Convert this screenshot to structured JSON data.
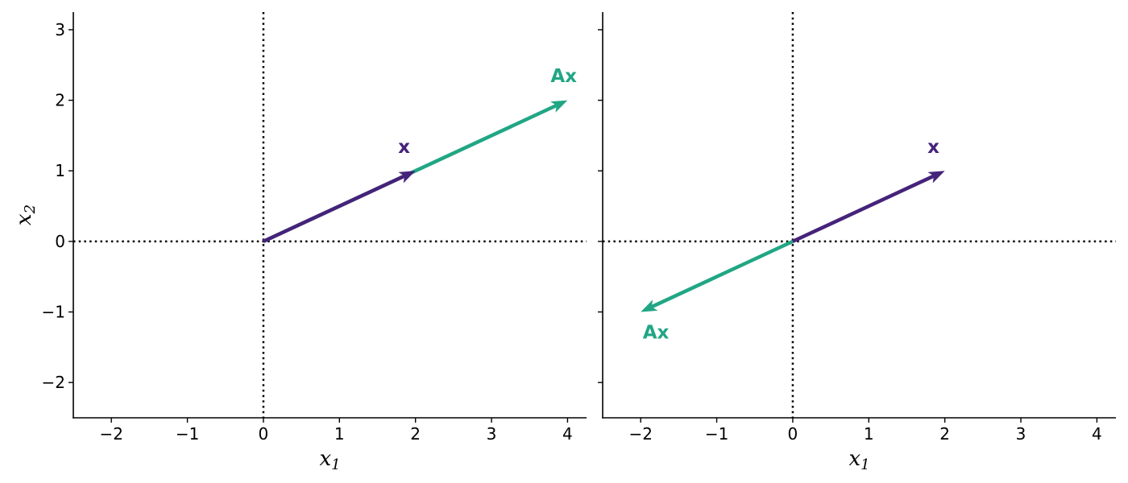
{
  "chart_data": [
    {
      "type": "vector",
      "xlabel": "x",
      "xlabel_sub": "1",
      "ylabel": "x",
      "ylabel_sub": "2",
      "xlim": [
        -2.5,
        4.25
      ],
      "ylim": [
        -2.5,
        3.25
      ],
      "xticks": [
        -2,
        -1,
        0,
        1,
        2,
        3,
        4
      ],
      "yticks": [
        -2,
        -1,
        0,
        1,
        2,
        3
      ],
      "show_ytick_labels": true,
      "vectors": [
        {
          "label": "Ax",
          "start": [
            0,
            0
          ],
          "end": [
            4,
            2
          ],
          "color": "#21a685",
          "label_pos": [
            3.95,
            2.33
          ]
        },
        {
          "label": "x",
          "start": [
            0,
            0
          ],
          "end": [
            2,
            1
          ],
          "color": "#45237a",
          "label_pos": [
            1.85,
            1.33
          ]
        }
      ]
    },
    {
      "type": "vector",
      "xlabel": "x",
      "xlabel_sub": "1",
      "ylabel": "",
      "ylabel_sub": "",
      "xlim": [
        -2.5,
        4.25
      ],
      "ylim": [
        -2.5,
        3.25
      ],
      "xticks": [
        -2,
        -1,
        0,
        1,
        2,
        3,
        4
      ],
      "yticks": [
        -2,
        -1,
        0,
        1,
        2,
        3
      ],
      "show_ytick_labels": false,
      "vectors": [
        {
          "label": "x",
          "start": [
            0,
            0
          ],
          "end": [
            2,
            1
          ],
          "color": "#45237a",
          "label_pos": [
            1.85,
            1.33
          ]
        },
        {
          "label": "Ax",
          "start": [
            0,
            0
          ],
          "end": [
            -2,
            -1
          ],
          "color": "#21a685",
          "label_pos": [
            -1.8,
            -1.3
          ]
        }
      ]
    }
  ]
}
